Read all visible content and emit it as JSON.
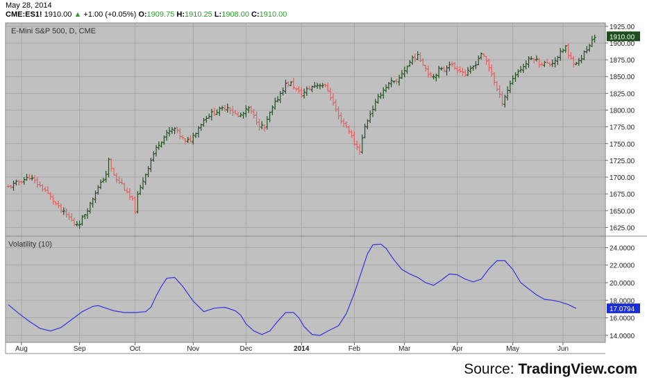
{
  "header": {
    "date": "May 28, 2014",
    "symbol": "CME:ES1!",
    "last": "1910.00",
    "change": "+1.00 (+0.05%)",
    "o_label": "O:",
    "o_value": "1909.75",
    "h_label": "H:",
    "h_value": "1910.25",
    "l_label": "L:",
    "l_value": "1908.00",
    "c_label": "C:",
    "c_value": "1910.00"
  },
  "source": {
    "prefix": "Source: ",
    "name": "TradingView.com"
  },
  "colors": {
    "plot_bg": "#c0c0c0",
    "grid": "#a8a8a8",
    "up_bar": "#1f4e1f",
    "down_bar": "#e06060",
    "vol_line": "#3333dd",
    "price_tag_bg": "#1d4d1d",
    "vol_tag_bg": "#1a2fd8"
  },
  "chart_data": [
    {
      "type": "ohlc",
      "title": "E-Mini S&P 500, D, CME",
      "ylim": [
        1612,
        1930
      ],
      "yticks": [
        1625,
        1650,
        1675,
        1700,
        1725,
        1750,
        1775,
        1800,
        1825,
        1850,
        1875,
        1900,
        1925
      ],
      "ytick_labels": [
        "1625.00",
        "1650.00",
        "1675.00",
        "1700.00",
        "1725.00",
        "1750.00",
        "1775.00",
        "1800.00",
        "1825.00",
        "1850.00",
        "1875.00",
        "1900.00",
        "1925.00"
      ],
      "last_price_label": "1910.00",
      "last_price": 1910,
      "x_labels": [
        "Aug",
        "Sep",
        "Oct",
        "Nov",
        "Dec",
        "2014",
        "Feb",
        "Mar",
        "Apr",
        "May",
        "Jun"
      ],
      "close_path": [
        [
          0,
          1685
        ],
        [
          5,
          1695
        ],
        [
          8,
          1700
        ],
        [
          11,
          1690
        ],
        [
          14,
          1680
        ],
        [
          17,
          1665
        ],
        [
          20,
          1650
        ],
        [
          23,
          1640
        ],
        [
          25,
          1630
        ],
        [
          27,
          1632
        ],
        [
          29,
          1645
        ],
        [
          31,
          1660
        ],
        [
          33,
          1678
        ],
        [
          35,
          1690
        ],
        [
          37,
          1705
        ],
        [
          38,
          1725
        ],
        [
          39,
          1712
        ],
        [
          41,
          1695
        ],
        [
          43,
          1690
        ],
        [
          45,
          1675
        ],
        [
          47,
          1665
        ],
        [
          48,
          1650
        ],
        [
          49,
          1672
        ],
        [
          51,
          1695
        ],
        [
          53,
          1715
        ],
        [
          55,
          1735
        ],
        [
          57,
          1750
        ],
        [
          59,
          1760
        ],
        [
          61,
          1768
        ],
        [
          63,
          1772
        ],
        [
          65,
          1762
        ],
        [
          67,
          1752
        ],
        [
          69,
          1756
        ],
        [
          71,
          1768
        ],
        [
          73,
          1780
        ],
        [
          75,
          1790
        ],
        [
          77,
          1795
        ],
        [
          79,
          1798
        ],
        [
          81,
          1802
        ],
        [
          83,
          1805
        ],
        [
          85,
          1798
        ],
        [
          87,
          1790
        ],
        [
          89,
          1795
        ],
        [
          91,
          1803
        ],
        [
          93,
          1790
        ],
        [
          95,
          1778
        ],
        [
          97,
          1773
        ],
        [
          99,
          1795
        ],
        [
          101,
          1810
        ],
        [
          103,
          1825
        ],
        [
          105,
          1838
        ],
        [
          107,
          1840
        ],
        [
          109,
          1830
        ],
        [
          111,
          1823
        ],
        [
          113,
          1830
        ],
        [
          115,
          1835
        ],
        [
          117,
          1838
        ],
        [
          119,
          1838
        ],
        [
          121,
          1830
        ],
        [
          123,
          1810
        ],
        [
          125,
          1790
        ],
        [
          127,
          1780
        ],
        [
          129,
          1770
        ],
        [
          131,
          1750
        ],
        [
          133,
          1740
        ],
        [
          135,
          1775
        ],
        [
          137,
          1795
        ],
        [
          139,
          1810
        ],
        [
          141,
          1825
        ],
        [
          143,
          1835
        ],
        [
          145,
          1842
        ],
        [
          147,
          1840
        ],
        [
          149,
          1855
        ],
        [
          151,
          1865
        ],
        [
          153,
          1878
        ],
        [
          155,
          1880
        ],
        [
          157,
          1870
        ],
        [
          159,
          1855
        ],
        [
          161,
          1850
        ],
        [
          163,
          1860
        ],
        [
          165,
          1860
        ],
        [
          167,
          1870
        ],
        [
          169,
          1863
        ],
        [
          171,
          1860
        ],
        [
          173,
          1853
        ],
        [
          175,
          1860
        ],
        [
          177,
          1870
        ],
        [
          179,
          1885
        ],
        [
          181,
          1872
        ],
        [
          183,
          1855
        ],
        [
          185,
          1830
        ],
        [
          187,
          1812
        ],
        [
          189,
          1830
        ],
        [
          191,
          1848
        ],
        [
          193,
          1858
        ],
        [
          195,
          1865
        ],
        [
          197,
          1875
        ],
        [
          199,
          1878
        ],
        [
          201,
          1870
        ],
        [
          203,
          1870
        ],
        [
          205,
          1868
        ],
        [
          207,
          1875
        ],
        [
          209,
          1885
        ],
        [
          211,
          1895
        ],
        [
          212,
          1880
        ],
        [
          214,
          1872
        ],
        [
          216,
          1872
        ],
        [
          218,
          1885
        ],
        [
          220,
          1895
        ],
        [
          221,
          1905
        ],
        [
          222,
          1910
        ]
      ]
    },
    {
      "type": "line",
      "title": "Volatility (10)",
      "ylim": [
        13.2,
        25.3
      ],
      "yticks": [
        14,
        16,
        18,
        20,
        22,
        24
      ],
      "ytick_labels": [
        "14.0000",
        "16.0000",
        "18.0000",
        "20.0000",
        "22.0000",
        "24.0000"
      ],
      "last_value_label": "17.0794",
      "last_value": 17.0794,
      "series": [
        {
          "points": [
            [
              0,
              17.5
            ],
            [
              4,
              16.5
            ],
            [
              8,
              15.6
            ],
            [
              12,
              14.8
            ],
            [
              16,
              14.5
            ],
            [
              20,
              14.9
            ],
            [
              24,
              15.8
            ],
            [
              28,
              16.7
            ],
            [
              32,
              17.3
            ],
            [
              34,
              17.4
            ],
            [
              36,
              17.2
            ],
            [
              40,
              16.8
            ],
            [
              44,
              16.6
            ],
            [
              48,
              16.6
            ],
            [
              52,
              16.7
            ],
            [
              54,
              17.2
            ],
            [
              56,
              18.5
            ],
            [
              58,
              19.6
            ],
            [
              60,
              20.5
            ],
            [
              63,
              20.6
            ],
            [
              66,
              19.6
            ],
            [
              70,
              17.9
            ],
            [
              74,
              16.7
            ],
            [
              78,
              17.1
            ],
            [
              82,
              17.2
            ],
            [
              86,
              16.8
            ],
            [
              88,
              16.3
            ],
            [
              90,
              15.3
            ],
            [
              93,
              14.5
            ],
            [
              96,
              14.1
            ],
            [
              99,
              14.5
            ],
            [
              102,
              15.6
            ],
            [
              105,
              16.6
            ],
            [
              108,
              16.6
            ],
            [
              110,
              16.0
            ],
            [
              112,
              15.0
            ],
            [
              115,
              14.1
            ],
            [
              118,
              14.0
            ],
            [
              121,
              14.5
            ],
            [
              125,
              15.1
            ],
            [
              128,
              16.5
            ],
            [
              131,
              18.8
            ],
            [
              134,
              21.5
            ],
            [
              136,
              23.3
            ],
            [
              138,
              24.3
            ],
            [
              141,
              24.4
            ],
            [
              143,
              23.9
            ],
            [
              146,
              22.6
            ],
            [
              149,
              21.5
            ],
            [
              152,
              21.0
            ],
            [
              155,
              20.6
            ],
            [
              158,
              20.0
            ],
            [
              161,
              19.7
            ],
            [
              164,
              20.3
            ],
            [
              167,
              21.0
            ],
            [
              170,
              20.9
            ],
            [
              173,
              20.4
            ],
            [
              176,
              20.1
            ],
            [
              179,
              20.4
            ],
            [
              182,
              21.6
            ],
            [
              185,
              22.5
            ],
            [
              188,
              22.5
            ],
            [
              191,
              21.5
            ],
            [
              194,
              20.0
            ],
            [
              197,
              19.3
            ],
            [
              200,
              18.6
            ],
            [
              203,
              18.1
            ],
            [
              206,
              18.0
            ],
            [
              209,
              17.8
            ],
            [
              212,
              17.5
            ],
            [
              215,
              17.08
            ]
          ]
        }
      ]
    }
  ]
}
